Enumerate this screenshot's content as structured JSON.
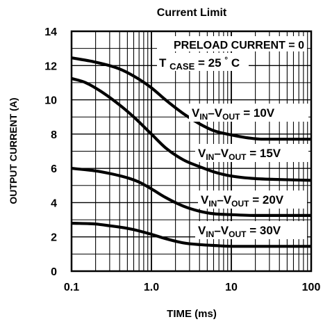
{
  "chart_data": {
    "type": "line",
    "title": "Current Limit",
    "xlabel": "TIME (ms)",
    "ylabel": "OUTPUT CURRENT (A)",
    "xscale": "log",
    "xlim": [
      0.1,
      100
    ],
    "ylim": [
      0,
      14
    ],
    "grid": true,
    "x_tick_labels": [
      "0.1",
      "1.0",
      "10",
      "100"
    ],
    "y_tick_labels": [
      "0",
      "2",
      "4",
      "6",
      "8",
      "10",
      "12",
      "14"
    ],
    "annotations": {
      "preload": "PRELOAD CURRENT = 0",
      "tcase_main": "T",
      "tcase_sub": "CASE",
      "tcase_value": " = 25",
      "tcase_degree": "°",
      "tcase_unit": "C"
    },
    "series": [
      {
        "name": "VIN–VOUT = 10V",
        "label_main": "V",
        "label_sub1": "IN",
        "label_mid": "–V",
        "label_sub2": "OUT",
        "label_value": " = 10V",
        "x": [
          0.1,
          0.2,
          0.4,
          0.7,
          1.0,
          1.5,
          2.5,
          4,
          6,
          10,
          15,
          25,
          50,
          100
        ],
        "y": [
          12.45,
          12.2,
          11.8,
          11.2,
          10.7,
          10.0,
          9.2,
          8.6,
          8.2,
          7.95,
          7.8,
          7.7,
          7.7,
          7.7
        ]
      },
      {
        "name": "VIN–VOUT = 15V",
        "label_main": "V",
        "label_sub1": "IN",
        "label_mid": "–V",
        "label_sub2": "OUT",
        "label_value": " = 15V",
        "x": [
          0.1,
          0.15,
          0.25,
          0.4,
          0.6,
          1.0,
          1.5,
          2.5,
          4,
          6,
          10,
          20,
          40,
          100
        ],
        "y": [
          11.25,
          11.0,
          10.4,
          9.7,
          9.0,
          8.0,
          7.2,
          6.5,
          6.1,
          5.8,
          5.55,
          5.4,
          5.35,
          5.3
        ]
      },
      {
        "name": "VIN–VOUT = 20V",
        "label_main": "V",
        "label_sub1": "IN",
        "label_mid": "–V",
        "label_sub2": "OUT",
        "label_value": " = 20V",
        "x": [
          0.1,
          0.2,
          0.3,
          0.5,
          0.7,
          1.0,
          1.5,
          2.5,
          4,
          6,
          10,
          20,
          50,
          100
        ],
        "y": [
          6.0,
          5.85,
          5.7,
          5.45,
          5.2,
          4.8,
          4.3,
          3.8,
          3.5,
          3.35,
          3.3,
          3.25,
          3.25,
          3.25
        ]
      },
      {
        "name": "VIN–VOUT = 30V",
        "label_main": "V",
        "label_sub1": "IN",
        "label_mid": "–V",
        "label_sub2": "OUT",
        "label_value": " = 30V",
        "x": [
          0.1,
          0.2,
          0.3,
          0.5,
          0.7,
          1.0,
          1.5,
          2.5,
          4,
          6,
          10,
          20,
          50,
          100
        ],
        "y": [
          2.8,
          2.75,
          2.65,
          2.5,
          2.35,
          2.15,
          1.9,
          1.65,
          1.55,
          1.5,
          1.45,
          1.45,
          1.45,
          1.45
        ]
      }
    ]
  }
}
